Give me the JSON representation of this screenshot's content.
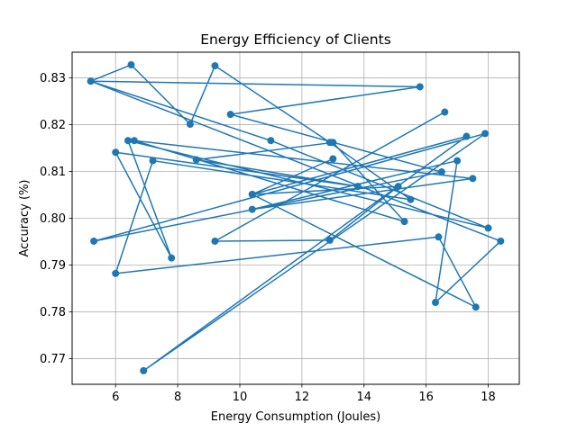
{
  "chart_data": {
    "type": "line",
    "title": "Energy Efficiency of Clients",
    "xlabel": "Energy Consumption (Joules)",
    "ylabel": "Accuracy (%)",
    "xlim": [
      4.6,
      19.0
    ],
    "ylim": [
      0.7645,
      0.8355
    ],
    "xticks": [
      6,
      8,
      10,
      12,
      14,
      16,
      18
    ],
    "yticks": [
      0.77,
      0.78,
      0.79,
      0.8,
      0.81,
      0.82,
      0.83
    ],
    "ytick_labels": [
      "0.77",
      "0.78",
      "0.79",
      "0.80",
      "0.81",
      "0.82",
      "0.83"
    ],
    "grid": true,
    "marker": "circle",
    "color": "#1f77b4",
    "series": [
      {
        "x": [
          13.0,
          10.4,
          17.3,
          6.9,
          17.9,
          5.3,
          16.5,
          9.7,
          15.8,
          5.2,
          18.4,
          16.3,
          17.0,
          10.4,
          17.5,
          6.6,
          15.3,
          13.0,
          8.6,
          13.8,
          6.0,
          7.8,
          6.4,
          18.0,
          11.0,
          5.2,
          6.5,
          8.4,
          9.2,
          12.9,
          15.5,
          7.2,
          6.0,
          16.4,
          17.6,
          10.4,
          15.1,
          12.9,
          9.2,
          16.6
        ],
        "y": [
          0.8127,
          0.8051,
          0.8175,
          0.7674,
          0.8181,
          0.7951,
          0.8099,
          0.8222,
          0.8281,
          0.8293,
          0.7951,
          0.782,
          0.8123,
          0.8019,
          0.8085,
          0.8166,
          0.7993,
          0.8162,
          0.8125,
          0.8068,
          0.8141,
          0.7915,
          0.8166,
          0.7979,
          0.8166,
          0.8293,
          0.8328,
          0.8201,
          0.8326,
          0.8162,
          0.804,
          0.8123,
          0.7882,
          0.796,
          0.781,
          0.8051,
          0.8068,
          0.7953,
          0.7951,
          0.8227
        ]
      }
    ]
  }
}
